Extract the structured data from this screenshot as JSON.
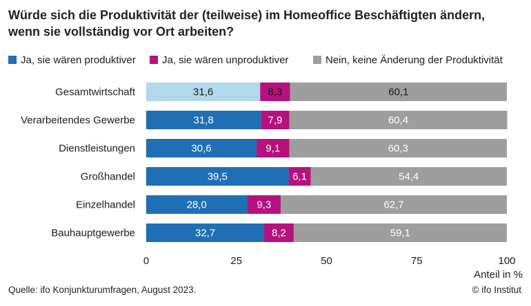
{
  "title_line1": "Würde sich die Produktivität der (teilweise) im Homeoffice Beschäftigten ändern,",
  "title_line2": "wenn sie vollständig vor Ort arbeiten?",
  "source": "Quelle: ifo Konjunkturumfragen, August 2023.",
  "credit": "© ifo Institut",
  "colors": {
    "blue": "#1f6fb5",
    "blue_light": "#b3d8ec",
    "magenta": "#b5127e",
    "gray": "#9e9e9e"
  },
  "chart_data": {
    "type": "bar",
    "orientation": "horizontal",
    "stacked": true,
    "categories": [
      "Gesamtwirtschaft",
      "Verarbeitendes Gewerbe",
      "Dienstleistungen",
      "Großhandel",
      "Einzelhandel",
      "Bauhauptgewerbe"
    ],
    "series": [
      {
        "name": "Ja, sie wären produktiver",
        "values": [
          31.6,
          31.8,
          30.6,
          39.5,
          28.0,
          32.7
        ],
        "labels": [
          "31,6",
          "31,8",
          "30,6",
          "39,5",
          "28,0",
          "32,7"
        ]
      },
      {
        "name": "Ja, sie wären unproduktiver",
        "values": [
          8.3,
          7.9,
          9.1,
          6.1,
          9.3,
          8.2
        ],
        "labels": [
          "8,3",
          "7,9",
          "9,1",
          "6,1",
          "9,3",
          "8,2"
        ]
      },
      {
        "name": "Nein, keine Änderung der Produktivität",
        "values": [
          60.1,
          60.4,
          60.3,
          54.4,
          62.7,
          59.1
        ],
        "labels": [
          "60,1",
          "60,4",
          "60,3",
          "54,4",
          "62,7",
          "59,1"
        ]
      }
    ],
    "xlim": [
      0,
      100
    ],
    "xticks": [
      0,
      25,
      50,
      75,
      100
    ],
    "xlabel": "Anteil in %",
    "legend_position": "top",
    "highlight_category": "Gesamtwirtschaft"
  }
}
